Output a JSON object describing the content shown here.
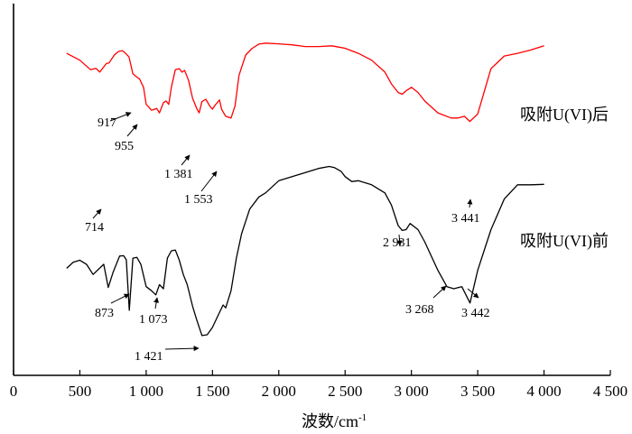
{
  "chart_data": {
    "type": "line",
    "title": "",
    "xlabel": "波数/cm",
    "xlabel_sup": "-1",
    "ylabel": "",
    "xlim": [
      0,
      4500
    ],
    "x_ticks": [
      0,
      500,
      1000,
      1500,
      2000,
      2500,
      3000,
      3500,
      4000,
      4500
    ],
    "x_tick_labels": [
      "0",
      "500",
      "1 000",
      "1 500",
      "2 000",
      "2 500",
      "3 000",
      "3 500",
      "4 000",
      "4 500"
    ],
    "grid": false,
    "legend": "none",
    "series": [
      {
        "name": "吸附U(VI)后",
        "color": "#ff0000",
        "x": [
          400,
          500,
          580,
          620,
          650,
          700,
          720,
          760,
          790,
          820,
          840,
          870,
          900,
          930,
          950,
          980,
          1000,
          1040,
          1080,
          1100,
          1130,
          1150,
          1170,
          1190,
          1220,
          1250,
          1270,
          1290,
          1320,
          1350,
          1381,
          1400,
          1420,
          1450,
          1480,
          1500,
          1520,
          1553,
          1570,
          1600,
          1640,
          1670,
          1700,
          1750,
          1800,
          1850,
          1900,
          2000,
          2100,
          2200,
          2300,
          2400,
          2500,
          2600,
          2700,
          2800,
          2850,
          2900,
          2931,
          2960,
          3000,
          3050,
          3100,
          3200,
          3300,
          3350,
          3400,
          3441,
          3500,
          3600,
          3700,
          3800,
          3900,
          4000
        ],
        "y": [
          400,
          380,
          352,
          356,
          345,
          370,
          372,
          395,
          405,
          408,
          402,
          390,
          340,
          330,
          325,
          300,
          250,
          233,
          238,
          225,
          255,
          260,
          250,
          300,
          352,
          355,
          345,
          350,
          320,
          268,
          238,
          225,
          258,
          265,
          245,
          236,
          248,
          263,
          235,
          215,
          210,
          245,
          335,
          395,
          415,
          427,
          430,
          428,
          425,
          420,
          420,
          422,
          415,
          400,
          380,
          345,
          310,
          285,
          280,
          290,
          300,
          285,
          260,
          225,
          210,
          210,
          215,
          200,
          222,
          355,
          392,
          400,
          410,
          422
        ]
      },
      {
        "name": "吸附U(VI)前",
        "color": "#000000",
        "x": [
          400,
          450,
          500,
          550,
          600,
          680,
          714,
          750,
          800,
          830,
          850,
          873,
          900,
          930,
          960,
          1000,
          1040,
          1073,
          1100,
          1130,
          1160,
          1190,
          1220,
          1250,
          1280,
          1310,
          1350,
          1380,
          1421,
          1460,
          1500,
          1550,
          1580,
          1600,
          1640,
          1680,
          1720,
          1780,
          1850,
          1900,
          2000,
          2100,
          2200,
          2300,
          2380,
          2420,
          2470,
          2500,
          2550,
          2600,
          2700,
          2800,
          2850,
          2900,
          2931,
          2960,
          2990,
          3050,
          3100,
          3200,
          3268,
          3320,
          3380,
          3442,
          3500,
          3600,
          3700,
          3800,
          3900,
          4000
        ],
        "y": [
          205,
          220,
          225,
          215,
          190,
          215,
          158,
          195,
          235,
          236,
          226,
          102,
          230,
          232,
          215,
          160,
          150,
          140,
          165,
          155,
          230,
          248,
          250,
          225,
          190,
          165,
          112,
          80,
          40,
          42,
          60,
          95,
          115,
          108,
          150,
          230,
          290,
          350,
          380,
          390,
          420,
          430,
          440,
          450,
          455,
          452,
          443,
          430,
          418,
          420,
          410,
          390,
          360,
          310,
          298,
          300,
          315,
          300,
          270,
          200,
          160,
          155,
          160,
          120,
          200,
          300,
          375,
          410,
          410,
          411
        ]
      }
    ],
    "annotations": [
      {
        "label": "917",
        "x": 917,
        "series": 0
      },
      {
        "label": "955",
        "x": 955,
        "series": 0
      },
      {
        "label": "1 381",
        "x": 1381,
        "series": 0
      },
      {
        "label": "1 553",
        "x": 1553,
        "series": 0
      },
      {
        "label": "3 441",
        "x": 3441,
        "series": 0
      },
      {
        "label": "714",
        "x": 714,
        "series": 1
      },
      {
        "label": "873",
        "x": 873,
        "series": 1
      },
      {
        "label": "1 073",
        "x": 1073,
        "series": 1
      },
      {
        "label": "1 421",
        "x": 1421,
        "series": 1
      },
      {
        "label": "2 931",
        "x": 2931,
        "series": 1
      },
      {
        "label": "3 268",
        "x": 3268,
        "series": 1
      },
      {
        "label": "3 442",
        "x": 3442,
        "series": 1
      }
    ],
    "series_labels": [
      "吸附U(VI)后",
      "吸附U(VI)前"
    ]
  }
}
